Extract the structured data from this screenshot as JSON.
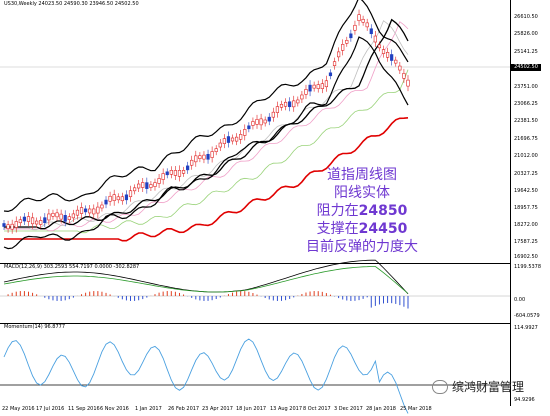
{
  "price_panel": {
    "header": "US30,Weekly 24023.50 24590.30 23946.50 24502.50",
    "y_ticks": [
      "26610.50",
      "25826.00",
      "25141.25",
      "24503.50",
      "23751.00",
      "23066.25",
      "22381.50",
      "21696.75",
      "21012.00",
      "20327.25",
      "19642.50",
      "18957.75",
      "18272.00",
      "17587.25",
      "16902.50"
    ],
    "current_price": "24502.50",
    "annotation": {
      "line1": "道指周线图",
      "line2": "阳线实体",
      "line3_prefix": "阻力在",
      "line3_value": "24850",
      "line4_prefix": "支撑在",
      "line4_value": "24450",
      "line5": "目前反弹的力度大"
    }
  },
  "macd_panel": {
    "header": "MACD(12,26,9) 303.2593 554.7197 0.0000 -302.8287",
    "y_ticks": [
      "1199.5378",
      "0.00",
      "-604.0579"
    ]
  },
  "momentum_panel": {
    "header": "Momentum(14) 96.8777",
    "y_ticks": [
      "114.9927",
      "94.9296"
    ]
  },
  "x_ticks": [
    "22 May 2016",
    "17 Jul 2016",
    "11 Sep 2016",
    "6 Nov 2016",
    "1 Jan 2017",
    "26 Feb 2017",
    "23 Apr 2017",
    "18 Jun 2017",
    "13 Aug 2017",
    "8 Oct 2017",
    "3 Dec 2017",
    "28 Jan 2018",
    "25 Mar 2018"
  ],
  "watermark": "缤鸿财富管理",
  "colors": {
    "bollinger": "#000000",
    "ma_red": "#e00000",
    "ma_green": "#9ad37a",
    "ma_pink": "#f0a0c8",
    "ma_gray": "#c0c0c0",
    "candle_up": "#e02020",
    "candle_down": "#2040c0",
    "macd_pos": "#e04020",
    "macd_neg": "#3050d0",
    "momentum": "#4aa0e0",
    "annotation": "#6f38d1"
  }
}
